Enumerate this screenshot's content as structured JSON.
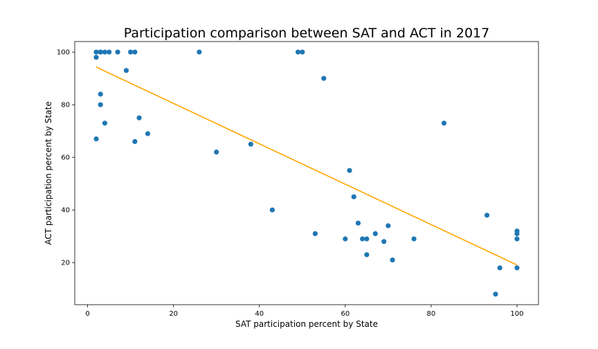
{
  "chart_data": {
    "type": "scatter",
    "title": "Participation comparison between SAT and ACT in 2017",
    "xlabel": "SAT participation percent by State",
    "ylabel": "ACT participation percent by State",
    "xlim": [
      -3,
      105
    ],
    "ylim": [
      4,
      104
    ],
    "xticks": [
      0,
      20,
      40,
      60,
      80,
      100
    ],
    "yticks": [
      20,
      40,
      60,
      80,
      100
    ],
    "grid": false,
    "point_color": "#1f77b4",
    "line_color": "#ffa500",
    "points": [
      {
        "x": 2,
        "y": 100
      },
      {
        "x": 3,
        "y": 100
      },
      {
        "x": 3,
        "y": 100
      },
      {
        "x": 4,
        "y": 100
      },
      {
        "x": 5,
        "y": 100
      },
      {
        "x": 7,
        "y": 100
      },
      {
        "x": 10,
        "y": 100
      },
      {
        "x": 11,
        "y": 100
      },
      {
        "x": 26,
        "y": 100
      },
      {
        "x": 49,
        "y": 100
      },
      {
        "x": 50,
        "y": 100
      },
      {
        "x": 2,
        "y": 98
      },
      {
        "x": 9,
        "y": 93
      },
      {
        "x": 55,
        "y": 90
      },
      {
        "x": 3,
        "y": 84
      },
      {
        "x": 3,
        "y": 80
      },
      {
        "x": 12,
        "y": 75
      },
      {
        "x": 4,
        "y": 73
      },
      {
        "x": 83,
        "y": 73
      },
      {
        "x": 14,
        "y": 69
      },
      {
        "x": 2,
        "y": 67
      },
      {
        "x": 11,
        "y": 66
      },
      {
        "x": 38,
        "y": 65
      },
      {
        "x": 30,
        "y": 62
      },
      {
        "x": 61,
        "y": 55
      },
      {
        "x": 62,
        "y": 45
      },
      {
        "x": 43,
        "y": 40
      },
      {
        "x": 93,
        "y": 38
      },
      {
        "x": 63,
        "y": 35
      },
      {
        "x": 70,
        "y": 34
      },
      {
        "x": 100,
        "y": 32
      },
      {
        "x": 100,
        "y": 31
      },
      {
        "x": 53,
        "y": 31
      },
      {
        "x": 67,
        "y": 31
      },
      {
        "x": 60,
        "y": 29
      },
      {
        "x": 64,
        "y": 29
      },
      {
        "x": 65,
        "y": 29
      },
      {
        "x": 76,
        "y": 29
      },
      {
        "x": 100,
        "y": 29
      },
      {
        "x": 69,
        "y": 28
      },
      {
        "x": 65,
        "y": 23
      },
      {
        "x": 71,
        "y": 21
      },
      {
        "x": 96,
        "y": 18
      },
      {
        "x": 100,
        "y": 18
      },
      {
        "x": 95,
        "y": 8
      }
    ],
    "trendline": [
      {
        "x": 2,
        "y": 94.3
      },
      {
        "x": 100,
        "y": 19.1
      }
    ]
  }
}
